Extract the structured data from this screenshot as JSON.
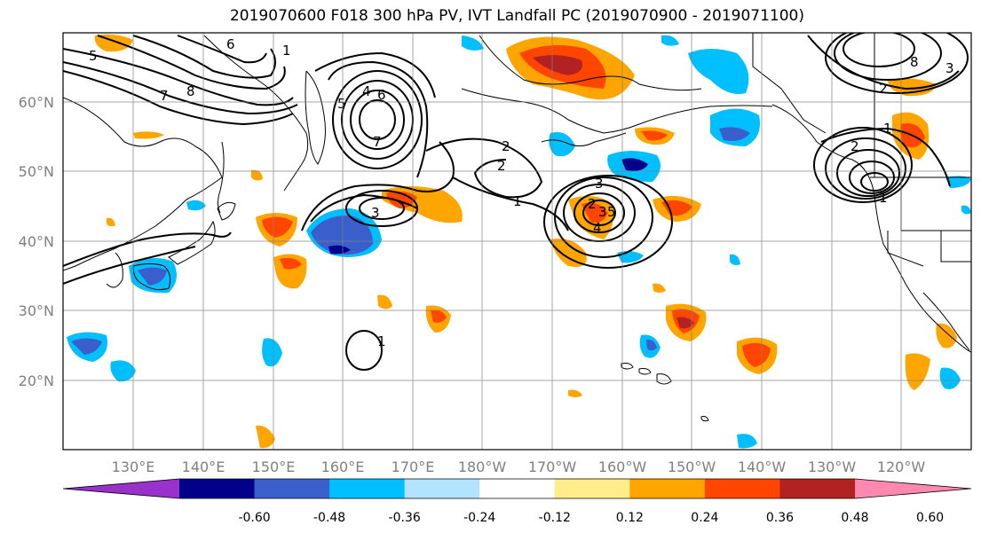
{
  "title": "2019070600 F018 300 hPa PV, IVT Landfall PC (2019070900 - 2019071100)",
  "lat_labels": [
    "60°N",
    "50°N",
    "40°N",
    "30°N",
    "20°N"
  ],
  "lon_labels": [
    "130°E",
    "140°E",
    "150°E",
    "160°E",
    "170°E",
    "180°W",
    "170°W",
    "160°W",
    "150°W",
    "140°W",
    "130°W",
    "120°W"
  ],
  "colorbar": {
    "colors": [
      "#9932cc",
      "#00008b",
      "#3a5fcd",
      "#00bfff",
      "#b2e3ff",
      "#ffffff",
      "#ffec8b",
      "#ffa500",
      "#ff4500",
      "#b22222",
      "#ff88b0"
    ],
    "tick_labels": [
      "-0.60",
      "-0.48",
      "-0.36",
      "-0.24",
      "-0.12",
      "0.12",
      "0.24",
      "0.36",
      "0.48",
      "0.60"
    ]
  },
  "contour_labels": [
    "6",
    "1",
    "5",
    "8",
    "7",
    "4",
    "5",
    "6",
    "7",
    "3",
    "2",
    "2",
    "1",
    "3",
    "4",
    "5",
    "2",
    "3",
    "1",
    "8",
    "2",
    "1",
    "2",
    "3",
    "1"
  ]
}
